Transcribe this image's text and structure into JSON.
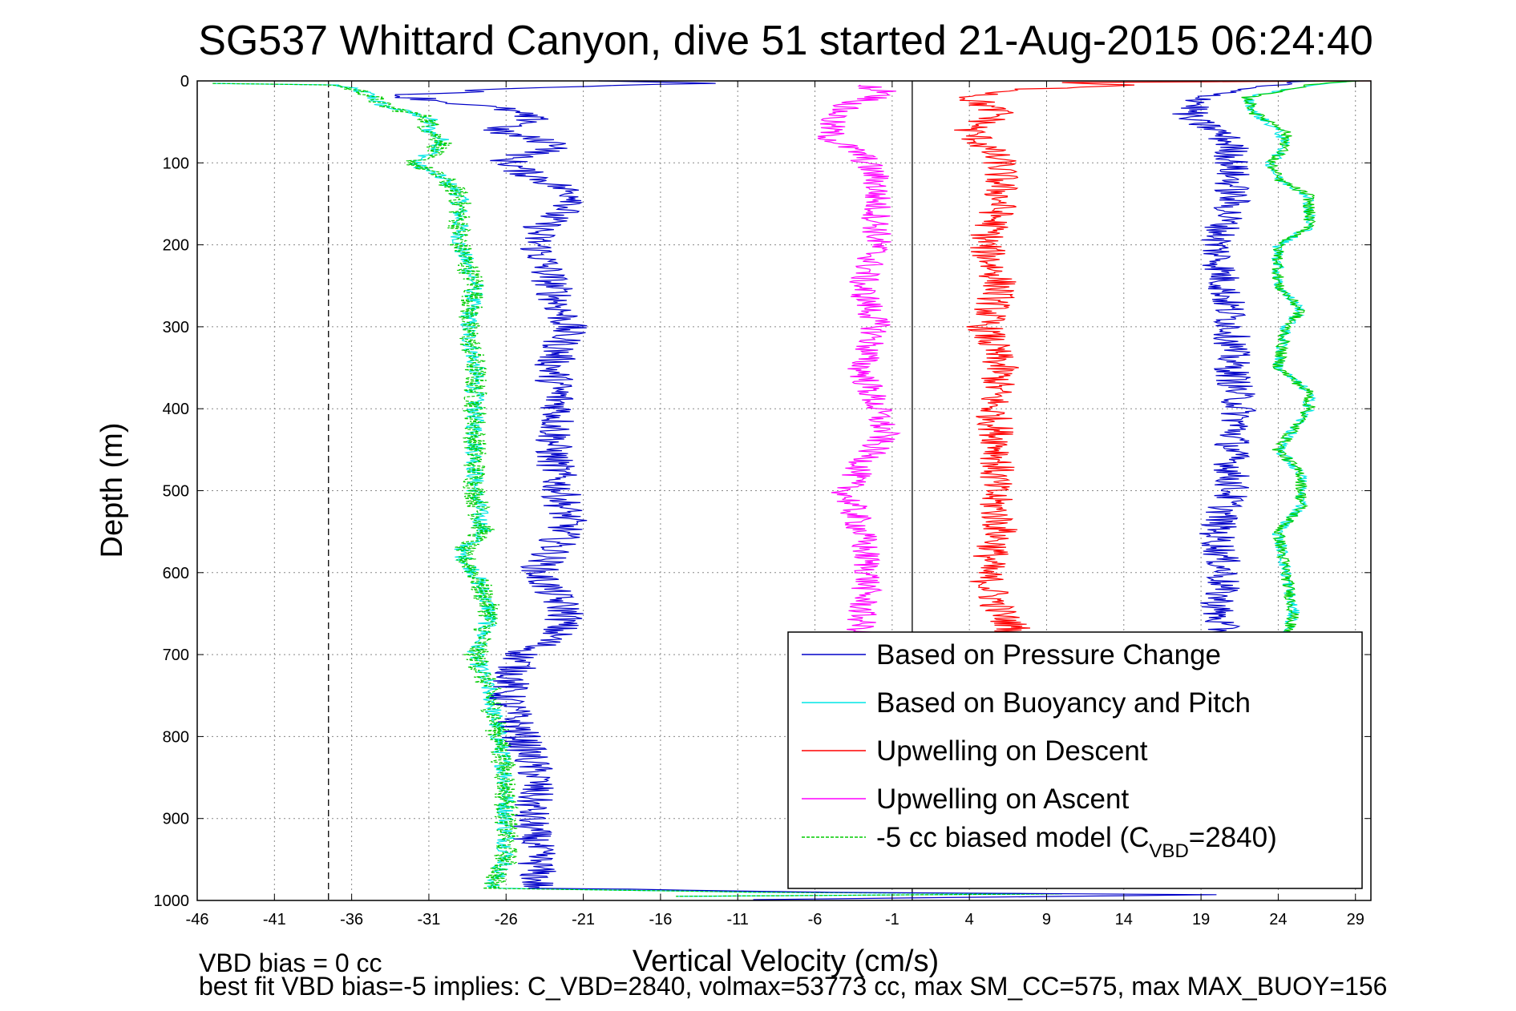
{
  "chart_data": {
    "type": "line",
    "title": "SG537 Whittard Canyon, dive 51 started 21-Aug-2015 06:24:40",
    "xlabel": "Vertical Velocity (cm/s)",
    "ylabel": "Depth (m)",
    "xlim": [
      -46,
      30
    ],
    "ylim": [
      1000,
      0
    ],
    "y_reversed": true,
    "x_ticks": [
      -46,
      -41,
      -36,
      -31,
      -26,
      -21,
      -16,
      -11,
      -6,
      -1,
      4,
      9,
      14,
      19,
      24,
      29
    ],
    "y_ticks": [
      0,
      100,
      200,
      300,
      400,
      500,
      600,
      700,
      800,
      900,
      1000
    ],
    "grid": true,
    "legend_position": "bottom-right",
    "reference_lines": [
      {
        "x": -37.5,
        "style": "dashed",
        "color": "#000000"
      },
      {
        "x": 0.3,
        "style": "solid",
        "color": "#000000"
      }
    ],
    "series": [
      {
        "name": "Based on Pressure Change",
        "color": "#0000c8",
        "style": "solid",
        "noise": 1.3,
        "points": [
          [
            -20,
            0
          ],
          [
            -12,
            3
          ],
          [
            -24,
            8
          ],
          [
            -33,
            18
          ],
          [
            -30,
            25
          ],
          [
            -26,
            35
          ],
          [
            -24,
            50
          ],
          [
            -27,
            60
          ],
          [
            -22,
            80
          ],
          [
            -26,
            95
          ],
          [
            -25,
            110
          ],
          [
            -23,
            125
          ],
          [
            -21,
            145
          ],
          [
            -23,
            165
          ],
          [
            -24,
            185
          ],
          [
            -24,
            200
          ],
          [
            -23,
            250
          ],
          [
            -22,
            300
          ],
          [
            -23,
            350
          ],
          [
            -22.5,
            400
          ],
          [
            -23,
            450
          ],
          [
            -22.5,
            500
          ],
          [
            -22,
            540
          ],
          [
            -23,
            575
          ],
          [
            -24,
            600
          ],
          [
            -22,
            650
          ],
          [
            -23,
            680
          ],
          [
            -25,
            700
          ],
          [
            -26,
            750
          ],
          [
            -25,
            800
          ],
          [
            -24,
            850
          ],
          [
            -24.5,
            900
          ],
          [
            -24,
            950
          ],
          [
            -24,
            985
          ],
          [
            -5,
            990
          ],
          [
            20,
            993
          ],
          [
            5,
            996
          ],
          [
            -10,
            999
          ]
        ]
      },
      {
        "name": "Based on Buoyancy and Pitch",
        "color": "#00e6e6",
        "style": "solid",
        "noise": 0.6,
        "points": [
          [
            -45,
            3
          ],
          [
            -37,
            5
          ],
          [
            -35,
            15
          ],
          [
            -34,
            30
          ],
          [
            -31,
            45
          ],
          [
            -31,
            60
          ],
          [
            -30,
            75
          ],
          [
            -31,
            90
          ],
          [
            -32,
            100
          ],
          [
            -30,
            120
          ],
          [
            -29,
            140
          ],
          [
            -29,
            160
          ],
          [
            -29,
            200
          ],
          [
            -28,
            250
          ],
          [
            -28.5,
            300
          ],
          [
            -28,
            350
          ],
          [
            -28,
            400
          ],
          [
            -28,
            450
          ],
          [
            -28,
            500
          ],
          [
            -27.5,
            550
          ],
          [
            -29,
            575
          ],
          [
            -28,
            600
          ],
          [
            -27,
            650
          ],
          [
            -28,
            700
          ],
          [
            -27,
            750
          ],
          [
            -26.5,
            800
          ],
          [
            -26,
            850
          ],
          [
            -26,
            900
          ],
          [
            -26,
            950
          ],
          [
            -27,
            985
          ],
          [
            -10,
            990
          ],
          [
            10,
            992
          ],
          [
            -15,
            995
          ]
        ]
      },
      {
        "name": "Upwelling on Descent",
        "color": "#ff0000",
        "style": "solid",
        "noise": 1.2,
        "points": [
          [
            30,
            0
          ],
          [
            10,
            2
          ],
          [
            14,
            5
          ],
          [
            8,
            10
          ],
          [
            4,
            20
          ],
          [
            6,
            40
          ],
          [
            4,
            60
          ],
          [
            6,
            100
          ],
          [
            6,
            150
          ],
          [
            5,
            200
          ],
          [
            6,
            250
          ],
          [
            5,
            300
          ],
          [
            6,
            350
          ],
          [
            5.5,
            400
          ],
          [
            6,
            450
          ],
          [
            5.5,
            500
          ],
          [
            6,
            550
          ],
          [
            5,
            600
          ],
          [
            6,
            650
          ],
          [
            7,
            670
          ],
          [
            5,
            680
          ]
        ]
      },
      {
        "name": "Upwelling on Ascent",
        "color": "#ff00ff",
        "style": "solid",
        "noise": 1.0,
        "points": [
          [
            -3,
            5
          ],
          [
            -1,
            15
          ],
          [
            -4,
            30
          ],
          [
            -5,
            50
          ],
          [
            -5,
            70
          ],
          [
            -3,
            90
          ],
          [
            -2,
            120
          ],
          [
            -2,
            160
          ],
          [
            -2,
            200
          ],
          [
            -3,
            250
          ],
          [
            -2,
            300
          ],
          [
            -3,
            350
          ],
          [
            -2,
            400
          ],
          [
            -1.5,
            430
          ],
          [
            -3,
            470
          ],
          [
            -4,
            500
          ],
          [
            -3,
            550
          ],
          [
            -2.5,
            600
          ],
          [
            -3,
            650
          ],
          [
            -3,
            680
          ]
        ]
      },
      {
        "name": "-5 cc biased model (C",
        "name_sub": "VBD",
        "name_suffix": "=2840)",
        "color": "#00cc00",
        "style": "dashed",
        "noise": 0.8,
        "points": [
          [
            -45,
            3
          ],
          [
            -37,
            5
          ],
          [
            -35,
            15
          ],
          [
            -34,
            30
          ],
          [
            -31,
            45
          ],
          [
            -31,
            60
          ],
          [
            -30,
            75
          ],
          [
            -31,
            90
          ],
          [
            -32,
            100
          ],
          [
            -30,
            120
          ],
          [
            -29,
            140
          ],
          [
            -29,
            160
          ],
          [
            -29,
            200
          ],
          [
            -28,
            250
          ],
          [
            -28.5,
            300
          ],
          [
            -28,
            350
          ],
          [
            -28,
            400
          ],
          [
            -28,
            450
          ],
          [
            -28,
            500
          ],
          [
            -27.5,
            550
          ],
          [
            -29,
            575
          ],
          [
            -28,
            600
          ],
          [
            -27,
            650
          ],
          [
            -28,
            700
          ],
          [
            -27,
            750
          ],
          [
            -26.5,
            800
          ],
          [
            -26,
            850
          ],
          [
            -26,
            900
          ],
          [
            -26,
            950
          ],
          [
            -27,
            985
          ],
          [
            -10,
            990
          ],
          [
            10,
            992
          ],
          [
            -15,
            995
          ]
        ]
      }
    ],
    "ascent_series": [
      {
        "color": "#0000c8",
        "noise": 1.2,
        "points": [
          [
            26,
            0
          ],
          [
            22,
            8
          ],
          [
            20,
            15
          ],
          [
            19,
            25
          ],
          [
            18,
            45
          ],
          [
            20,
            60
          ],
          [
            21,
            80
          ],
          [
            21,
            100
          ],
          [
            21,
            150
          ],
          [
            20,
            200
          ],
          [
            20.5,
            250
          ],
          [
            21,
            300
          ],
          [
            21,
            350
          ],
          [
            21.5,
            400
          ],
          [
            21,
            450
          ],
          [
            21,
            500
          ],
          [
            20,
            550
          ],
          [
            20.5,
            600
          ],
          [
            20,
            650
          ],
          [
            20.5,
            680
          ]
        ]
      },
      {
        "color": "#00e6e6",
        "noise": 0.4,
        "points": [
          [
            29,
            0
          ],
          [
            26,
            5
          ],
          [
            22,
            20
          ],
          [
            22.5,
            40
          ],
          [
            24,
            60
          ],
          [
            24.5,
            80
          ],
          [
            23.5,
            100
          ],
          [
            24,
            120
          ],
          [
            26,
            140
          ],
          [
            26,
            180
          ],
          [
            24,
            200
          ],
          [
            24,
            250
          ],
          [
            25.5,
            280
          ],
          [
            24.5,
            300
          ],
          [
            24,
            350
          ],
          [
            26,
            380
          ],
          [
            26,
            400
          ],
          [
            24,
            450
          ],
          [
            25.5,
            480
          ],
          [
            25.5,
            520
          ],
          [
            24,
            550
          ],
          [
            24.5,
            600
          ],
          [
            25,
            650
          ],
          [
            24.5,
            680
          ]
        ]
      },
      {
        "color": "#00cc00",
        "noise": 0.4,
        "points": [
          [
            29,
            0
          ],
          [
            26,
            5
          ],
          [
            22,
            20
          ],
          [
            22.5,
            40
          ],
          [
            24.5,
            60
          ],
          [
            24.5,
            80
          ],
          [
            23.5,
            100
          ],
          [
            24,
            120
          ],
          [
            26,
            140
          ],
          [
            26,
            180
          ],
          [
            24,
            200
          ],
          [
            24,
            250
          ],
          [
            25.5,
            280
          ],
          [
            24.5,
            300
          ],
          [
            24,
            350
          ],
          [
            26,
            380
          ],
          [
            26,
            400
          ],
          [
            24,
            450
          ],
          [
            25.5,
            480
          ],
          [
            25.5,
            520
          ],
          [
            24,
            550
          ],
          [
            24.5,
            600
          ],
          [
            25,
            650
          ],
          [
            24.5,
            680
          ]
        ]
      }
    ]
  },
  "footer": {
    "line1": "VBD bias = 0 cc",
    "line2": "best fit VBD bias=-5 implies: C_VBD=2840, volmax=53773 cc, max SM_CC=575, max MAX_BUOY=156"
  }
}
